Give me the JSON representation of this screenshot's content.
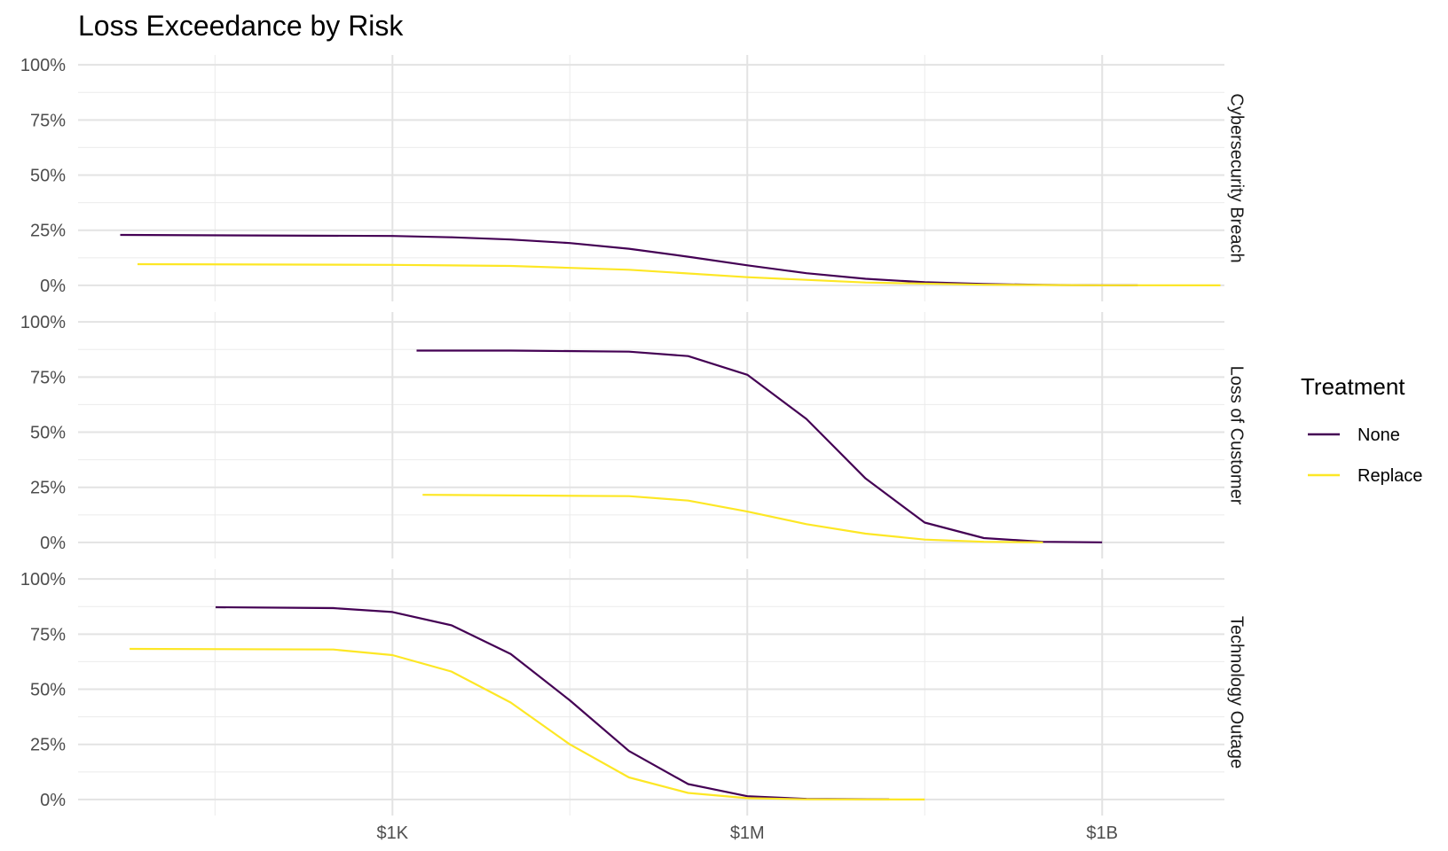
{
  "chart_data": {
    "type": "line",
    "title": "Loss Exceedance by Risk",
    "xlabel": "",
    "ylabel": "",
    "x_scale": "log10",
    "xlim": [
      2.2,
      10800000000
    ],
    "ylim": [
      0,
      1
    ],
    "x_ticks": [
      {
        "value": 1000,
        "label": "$1K"
      },
      {
        "value": 1000000,
        "label": "$1M"
      },
      {
        "value": 1000000000,
        "label": "$1B"
      }
    ],
    "y_ticks": [
      {
        "value": 0,
        "label": "0%"
      },
      {
        "value": 0.25,
        "label": "25%"
      },
      {
        "value": 0.5,
        "label": "50%"
      },
      {
        "value": 0.75,
        "label": "75%"
      },
      {
        "value": 1,
        "label": "100%"
      }
    ],
    "grid": true,
    "legend": {
      "title": "Treatment",
      "position": "right",
      "entries": [
        {
          "name": "None",
          "color": "#440154"
        },
        {
          "name": "Replace",
          "color": "#FDE725"
        }
      ]
    },
    "panels": [
      {
        "label": "Cybersecurity Breach",
        "series": [
          {
            "name": "None",
            "color": "#440154",
            "points": [
              [
                5,
                0.229
              ],
              [
                1000,
                0.224
              ],
              [
                3200,
                0.218
              ],
              [
                10000,
                0.208
              ],
              [
                31600,
                0.192
              ],
              [
                100000,
                0.166
              ],
              [
                316000,
                0.13
              ],
              [
                1000000,
                0.091
              ],
              [
                3160000,
                0.055
              ],
              [
                10000000,
                0.03
              ],
              [
                31600000,
                0.014
              ],
              [
                100000000,
                0.006
              ],
              [
                316000000,
                0.002
              ],
              [
                1000000000,
                0.0005
              ],
              [
                2000000000,
                0.0002
              ]
            ]
          },
          {
            "name": "Replace",
            "color": "#FDE725",
            "points": [
              [
                7,
                0.096
              ],
              [
                1000,
                0.093
              ],
              [
                10000,
                0.088
              ],
              [
                100000,
                0.071
              ],
              [
                1000000,
                0.037
              ],
              [
                10000000,
                0.013
              ],
              [
                100000000,
                0.003
              ],
              [
                1000000000,
                0.0005
              ],
              [
                10000000000,
                0.0001
              ]
            ]
          }
        ]
      },
      {
        "label": "Loss of Customer",
        "series": [
          {
            "name": "None",
            "color": "#440154",
            "points": [
              [
                1600,
                0.87
              ],
              [
                10000,
                0.87
              ],
              [
                100000,
                0.865
              ],
              [
                316000,
                0.845
              ],
              [
                1000000,
                0.76
              ],
              [
                3160000,
                0.56
              ],
              [
                10000000,
                0.29
              ],
              [
                31600000,
                0.09
              ],
              [
                100000000,
                0.02
              ],
              [
                316000000,
                0.003
              ],
              [
                1000000000,
                0.0005
              ]
            ]
          },
          {
            "name": "Replace",
            "color": "#FDE725",
            "points": [
              [
                1800,
                0.216
              ],
              [
                100000,
                0.21
              ],
              [
                316000,
                0.19
              ],
              [
                1000000,
                0.14
              ],
              [
                3160000,
                0.083
              ],
              [
                10000000,
                0.04
              ],
              [
                31600000,
                0.013
              ],
              [
                100000000,
                0.003
              ],
              [
                316000000,
                0.0005
              ]
            ]
          }
        ]
      },
      {
        "label": "Technology Outage",
        "series": [
          {
            "name": "None",
            "color": "#440154",
            "points": [
              [
                32,
                0.872
              ],
              [
                316,
                0.868
              ],
              [
                1000,
                0.85
              ],
              [
                3160,
                0.79
              ],
              [
                10000,
                0.66
              ],
              [
                31600,
                0.45
              ],
              [
                100000,
                0.22
              ],
              [
                316000,
                0.07
              ],
              [
                1000000,
                0.015
              ],
              [
                3160000,
                0.003
              ],
              [
                15800000,
                0.001
              ]
            ]
          },
          {
            "name": "Replace",
            "color": "#FDE725",
            "points": [
              [
                6,
                0.683
              ],
              [
                316,
                0.68
              ],
              [
                1000,
                0.655
              ],
              [
                3160,
                0.58
              ],
              [
                10000,
                0.44
              ],
              [
                31600,
                0.25
              ],
              [
                100000,
                0.1
              ],
              [
                316000,
                0.03
              ],
              [
                1000000,
                0.006
              ],
              [
                3160000,
                0.001
              ],
              [
                31600000,
                0.0002
              ]
            ]
          }
        ]
      }
    ]
  }
}
